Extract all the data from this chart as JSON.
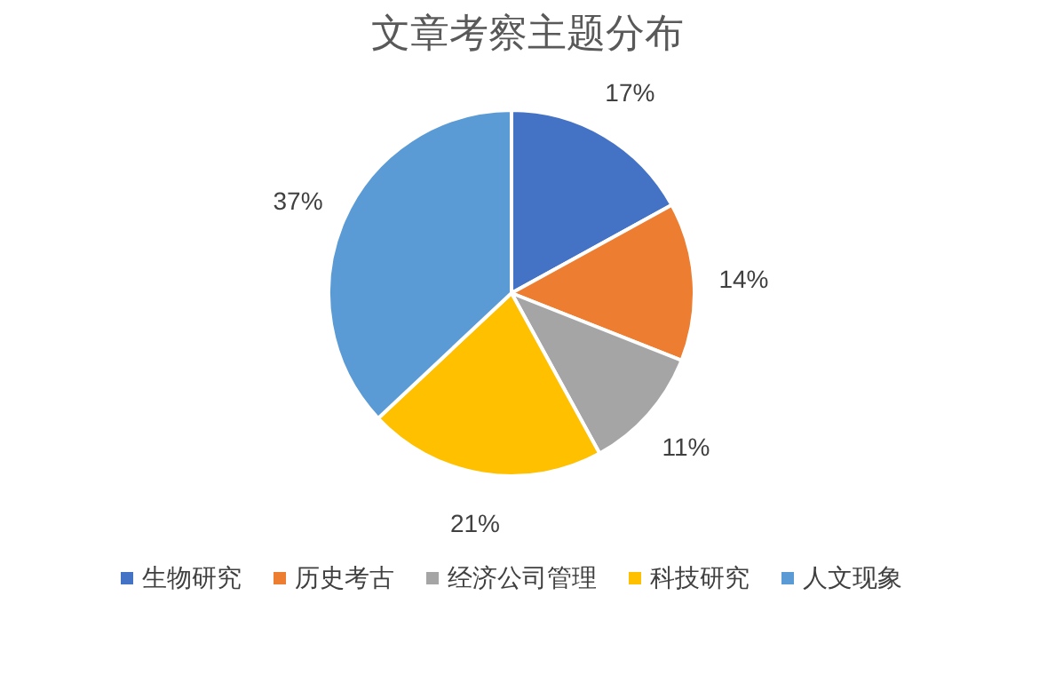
{
  "chart_data": {
    "type": "pie",
    "title": "文章考察主题分布",
    "categories": [
      "生物研究",
      "历史考古",
      "经济公司管理",
      "科技研究",
      "人文现象"
    ],
    "values": [
      17,
      14,
      11,
      21,
      37
    ],
    "colors": [
      "#4472c4",
      "#ed7d31",
      "#a5a5a5",
      "#ffc000",
      "#5b9bd5"
    ],
    "value_labels": [
      "17%",
      "14%",
      "11%",
      "21%",
      "37%"
    ],
    "legend": "bottom"
  }
}
